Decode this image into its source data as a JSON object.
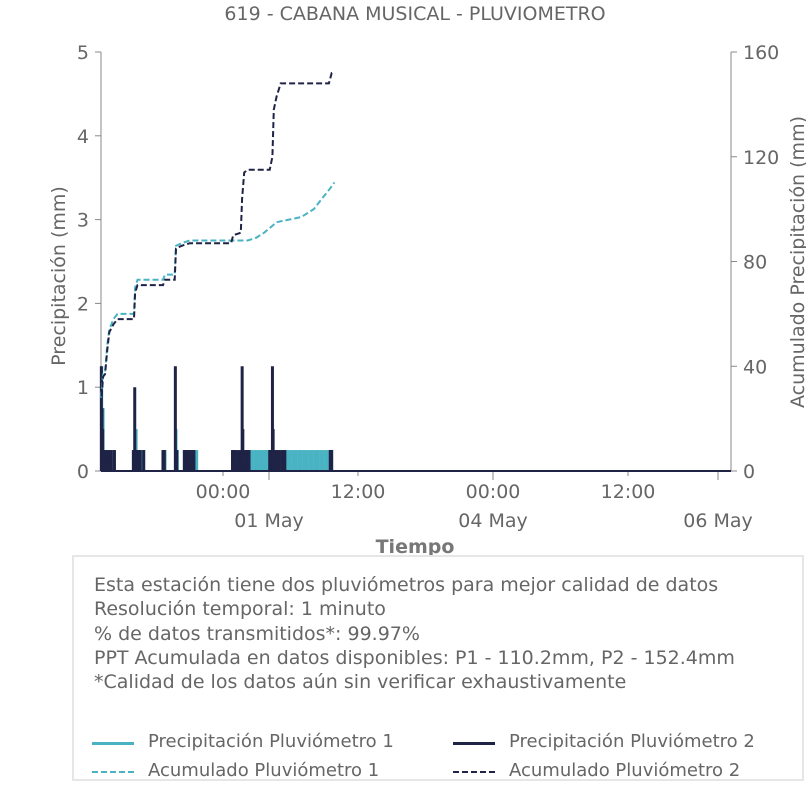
{
  "colors": {
    "p1": "#4ab3c3",
    "p2": "#1f2346",
    "text": "#666666",
    "axis": "#888888"
  },
  "chart_data": {
    "type": "line",
    "title": "619 - CABANA MUSICAL - PLUVIOMETRO",
    "xlabel": "Tiempo",
    "ylabel_left": "Precipitación (mm)",
    "ylabel_right": "Acumulado Precipitación (mm)",
    "ylim_left": [
      0,
      5
    ],
    "ylim_right": [
      0,
      160
    ],
    "yticks_left": [
      "0",
      "1",
      "2",
      "3",
      "4",
      "5"
    ],
    "yticks_right": [
      "0",
      "40",
      "80",
      "120",
      "160"
    ],
    "xlim": [
      "2023-04-29 19:30",
      "2023-05-06 04:00"
    ],
    "xticks_minor": [
      {
        "t": "2023-04-30 00:00",
        "label": "00:00"
      },
      {
        "t": "2023-04-30 12:00",
        "label": "12:00"
      },
      {
        "t": "2023-05-01 00:00",
        "label": "00:00"
      },
      {
        "t": "2023-05-01 12:00",
        "label": "12:00"
      }
    ],
    "xticks_major": [
      {
        "t": "2023-04-30 12:00",
        "label": "01 May"
      },
      {
        "t": "2023-05-01 12:00",
        "label": "04 May"
      },
      {
        "t": "2023-05-02 08:00",
        "label": "06 May"
      }
    ],
    "grid": false,
    "series": [
      {
        "name": "Precipitación Pluviómetro 1",
        "kind": "bars",
        "axis": "left",
        "points": [
          [
            "2023-04-29 19:40",
            1.25
          ],
          [
            "2023-04-29 19:50",
            0.5
          ],
          [
            "2023-04-29 20:00",
            0.75
          ],
          [
            "2023-04-29 20:30",
            0.25
          ],
          [
            "2023-04-29 21:00",
            0.25
          ],
          [
            "2023-04-29 21:30",
            0.25
          ],
          [
            "2023-04-29 22:00",
            0.25
          ],
          [
            "2023-04-29 22:45",
            0.25
          ],
          [
            "2023-04-30 03:30",
            0.25
          ],
          [
            "2023-04-30 04:00",
            0.5
          ],
          [
            "2023-04-30 04:20",
            0.25
          ],
          [
            "2023-04-30 04:30",
            0.25
          ],
          [
            "2023-04-30 05:00",
            0.25
          ],
          [
            "2023-04-30 05:20",
            0.25
          ],
          [
            "2023-04-30 05:50",
            0.25
          ],
          [
            "2023-04-30 10:40",
            0.25
          ],
          [
            "2023-04-30 11:00",
            0.25
          ],
          [
            "2023-04-30 13:40",
            0.5
          ],
          [
            "2023-04-30 14:00",
            0.25
          ],
          [
            "2023-04-30 15:50",
            0.25
          ],
          [
            "2023-04-30 16:20",
            0.25
          ],
          [
            "2023-04-30 16:40",
            0.25
          ],
          [
            "2023-04-30 17:20",
            0.25
          ],
          [
            "2023-04-30 18:00",
            0.25
          ],
          [
            "2023-04-30 18:40",
            0.25
          ],
          [
            "2023-05-01 07:30",
            0.25
          ],
          [
            "2023-05-01 08:00",
            0.25
          ],
          [
            "2023-05-01 08:40",
            0.25
          ],
          [
            "2023-05-01 09:20",
            0.25
          ],
          [
            "2023-05-01 10:00",
            0.25
          ],
          [
            "2023-05-01 10:40",
            0.25
          ],
          [
            "2023-05-01 11:00",
            0.25
          ],
          [
            "2023-05-01 11:40",
            0.25
          ],
          [
            "2023-05-01 12:20",
            0.25
          ],
          [
            "2023-05-01 13:00",
            0.25
          ],
          [
            "2023-05-01 14:00",
            0.25
          ],
          [
            "2023-05-01 15:00",
            0.25
          ],
          [
            "2023-05-01 16:00",
            0.25
          ],
          [
            "2023-05-01 16:40",
            0.25
          ],
          [
            "2023-05-01 17:20",
            0.25
          ],
          [
            "2023-05-01 18:00",
            0.25
          ],
          [
            "2023-05-01 18:40",
            0.25
          ],
          [
            "2023-05-01 19:20",
            0.25
          ],
          [
            "2023-05-01 20:00",
            0.25
          ],
          [
            "2023-05-01 20:40",
            0.25
          ],
          [
            "2023-05-01 21:20",
            0.25
          ],
          [
            "2023-05-01 22:00",
            0.25
          ],
          [
            "2023-05-01 22:40",
            0.25
          ],
          [
            "2023-05-01 23:20",
            0.25
          ],
          [
            "2023-05-02 00:00",
            0.25
          ],
          [
            "2023-05-02 00:40",
            0.25
          ],
          [
            "2023-05-02 01:20",
            0.25
          ],
          [
            "2023-05-02 02:00",
            0.25
          ],
          [
            "2023-05-02 02:40",
            0.25
          ],
          [
            "2023-05-02 03:20",
            0.25
          ]
        ]
      },
      {
        "name": "Precipitación Pluviómetro 2",
        "kind": "bars",
        "axis": "left",
        "points": [
          [
            "2023-04-29 19:35",
            1.25
          ],
          [
            "2023-04-29 19:45",
            0.75
          ],
          [
            "2023-04-29 19:55",
            0.5
          ],
          [
            "2023-04-29 20:05",
            0.25
          ],
          [
            "2023-04-29 20:30",
            0.25
          ],
          [
            "2023-04-29 21:00",
            0.25
          ],
          [
            "2023-04-29 21:30",
            0.25
          ],
          [
            "2023-04-29 22:00",
            0.25
          ],
          [
            "2023-04-29 22:45",
            0.25
          ],
          [
            "2023-04-30 03:20",
            0.25
          ],
          [
            "2023-04-30 03:40",
            1.0
          ],
          [
            "2023-04-30 04:10",
            0.25
          ],
          [
            "2023-04-30 04:30",
            0.25
          ],
          [
            "2023-04-30 05:00",
            0.25
          ],
          [
            "2023-04-30 05:50",
            0.25
          ],
          [
            "2023-04-30 10:30",
            0.25
          ],
          [
            "2023-04-30 10:50",
            0.25
          ],
          [
            "2023-04-30 13:30",
            1.25
          ],
          [
            "2023-04-30 13:50",
            0.25
          ],
          [
            "2023-04-30 15:40",
            0.25
          ],
          [
            "2023-04-30 16:00",
            0.25
          ],
          [
            "2023-04-30 16:20",
            0.25
          ],
          [
            "2023-04-30 16:50",
            0.25
          ],
          [
            "2023-04-30 17:20",
            0.25
          ],
          [
            "2023-04-30 18:00",
            0.25
          ],
          [
            "2023-05-01 03:20",
            0.25
          ],
          [
            "2023-05-01 03:40",
            0.25
          ],
          [
            "2023-05-01 04:00",
            0.25
          ],
          [
            "2023-05-01 04:40",
            0.25
          ],
          [
            "2023-05-01 05:20",
            0.25
          ],
          [
            "2023-05-01 05:40",
            1.25
          ],
          [
            "2023-05-01 05:50",
            0.5
          ],
          [
            "2023-05-01 06:10",
            0.25
          ],
          [
            "2023-05-01 06:40",
            0.25
          ],
          [
            "2023-05-01 07:00",
            0.25
          ],
          [
            "2023-05-01 07:20",
            0.25
          ],
          [
            "2023-05-01 12:20",
            0.25
          ],
          [
            "2023-05-01 12:40",
            0.25
          ],
          [
            "2023-05-01 13:00",
            1.25
          ],
          [
            "2023-05-01 13:10",
            0.5
          ],
          [
            "2023-05-01 13:30",
            0.25
          ],
          [
            "2023-05-01 14:00",
            0.25
          ],
          [
            "2023-05-01 14:40",
            0.25
          ],
          [
            "2023-05-01 15:20",
            0.25
          ],
          [
            "2023-05-01 16:00",
            0.25
          ],
          [
            "2023-05-02 03:00",
            0.25
          ],
          [
            "2023-05-02 03:20",
            0.25
          ]
        ]
      },
      {
        "name": "Acumulado Pluviómetro 1",
        "kind": "dashed",
        "axis": "right",
        "points": [
          [
            "2023-04-29 19:30",
            28
          ],
          [
            "2023-04-29 20:00",
            37
          ],
          [
            "2023-04-29 20:30",
            38
          ],
          [
            "2023-04-29 21:00",
            48
          ],
          [
            "2023-04-29 21:30",
            54
          ],
          [
            "2023-04-29 22:30",
            58
          ],
          [
            "2023-04-29 23:30",
            60
          ],
          [
            "2023-04-30 01:00",
            60
          ],
          [
            "2023-04-30 03:30",
            60
          ],
          [
            "2023-04-30 03:45",
            70
          ],
          [
            "2023-04-30 04:20",
            73
          ],
          [
            "2023-04-30 06:00",
            73
          ],
          [
            "2023-04-30 10:30",
            73
          ],
          [
            "2023-04-30 11:00",
            75
          ],
          [
            "2023-04-30 13:20",
            75
          ],
          [
            "2023-04-30 13:40",
            86
          ],
          [
            "2023-04-30 15:00",
            87
          ],
          [
            "2023-04-30 17:00",
            88
          ],
          [
            "2023-05-01 03:00",
            88
          ],
          [
            "2023-05-01 07:00",
            88
          ],
          [
            "2023-05-01 09:00",
            89
          ],
          [
            "2023-05-01 11:00",
            91
          ],
          [
            "2023-05-01 14:00",
            95
          ],
          [
            "2023-05-01 17:00",
            96
          ],
          [
            "2023-05-01 20:00",
            97
          ],
          [
            "2023-05-01 23:00",
            100
          ],
          [
            "2023-05-02 01:00",
            104
          ],
          [
            "2023-05-02 03:00",
            108
          ],
          [
            "2023-05-02 04:00",
            110.2
          ]
        ]
      },
      {
        "name": "Acumulado Pluviómetro 2",
        "kind": "dashed",
        "axis": "right",
        "points": [
          [
            "2023-04-29 19:30",
            25
          ],
          [
            "2023-04-29 20:00",
            36
          ],
          [
            "2023-04-29 20:30",
            37
          ],
          [
            "2023-04-29 21:00",
            46
          ],
          [
            "2023-04-29 21:30",
            53
          ],
          [
            "2023-04-29 22:30",
            56
          ],
          [
            "2023-04-29 23:30",
            58
          ],
          [
            "2023-04-30 01:00",
            58
          ],
          [
            "2023-04-30 03:30",
            58
          ],
          [
            "2023-04-30 03:45",
            68
          ],
          [
            "2023-04-30 04:20",
            71
          ],
          [
            "2023-04-30 06:00",
            71
          ],
          [
            "2023-04-30 10:30",
            71
          ],
          [
            "2023-04-30 11:00",
            73
          ],
          [
            "2023-04-30 13:20",
            73
          ],
          [
            "2023-04-30 13:40",
            85
          ],
          [
            "2023-04-30 15:00",
            86
          ],
          [
            "2023-04-30 17:00",
            87
          ],
          [
            "2023-05-01 03:00",
            87
          ],
          [
            "2023-05-01 03:30",
            90
          ],
          [
            "2023-05-01 05:20",
            91
          ],
          [
            "2023-05-01 05:40",
            104
          ],
          [
            "2023-05-01 06:10",
            114
          ],
          [
            "2023-05-01 07:00",
            115
          ],
          [
            "2023-05-01 12:20",
            115
          ],
          [
            "2023-05-01 13:00",
            120
          ],
          [
            "2023-05-01 13:20",
            138
          ],
          [
            "2023-05-01 14:00",
            143
          ],
          [
            "2023-05-01 15:00",
            148
          ],
          [
            "2023-05-02 02:40",
            148
          ],
          [
            "2023-05-02 03:20",
            152
          ],
          [
            "2023-05-02 04:00",
            152.4
          ]
        ]
      }
    ]
  },
  "info": {
    "lines": [
      "Esta estación tiene dos pluviómetros para mejor calidad de datos",
      "Resolución temporal: 1 minuto",
      "% de datos transmitidos*: 99.97%",
      "PPT Acumulada en datos disponibles: P1 - 110.2mm, P2 - 152.4mm",
      "*Calidad de los datos aún sin verificar exhaustivamente"
    ]
  },
  "legend": {
    "items": [
      {
        "label": "Precipitación Pluviómetro 1",
        "style": "solid",
        "color": "#4ab3c3"
      },
      {
        "label": "Precipitación Pluviómetro 2",
        "style": "solid",
        "color": "#1f2346"
      },
      {
        "label": "Acumulado Pluviómetro 1",
        "style": "dashed",
        "color": "#4ab3c3"
      },
      {
        "label": "Acumulado Pluviómetro 2",
        "style": "dashed",
        "color": "#1f2346"
      }
    ]
  }
}
